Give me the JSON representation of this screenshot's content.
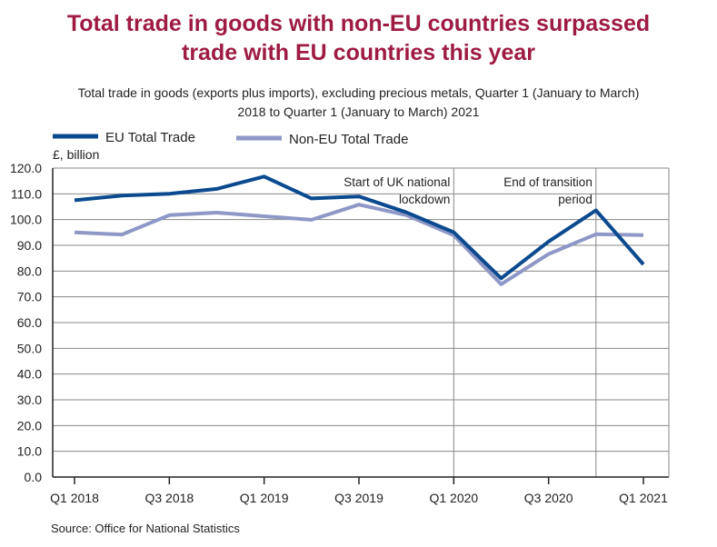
{
  "title_line1": "Total trade in goods with non-EU countries surpassed",
  "title_line2": "trade with EU countries this year",
  "subtitle_line1": "Total trade in goods (exports plus imports), excluding precious metals, Quarter 1 (January to March)",
  "subtitle_line2": "2018 to Quarter 1 (January to March) 2021",
  "source": "Source: Office for National Statistics",
  "chart_data": {
    "type": "line",
    "ylabel": "£, billion",
    "ylim": [
      0,
      120
    ],
    "yticks": [
      "0.0",
      "10.0",
      "20.0",
      "30.0",
      "40.0",
      "50.0",
      "60.0",
      "70.0",
      "80.0",
      "90.0",
      "100.0",
      "110.0",
      "120.0"
    ],
    "ytick_values": [
      0,
      10,
      20,
      30,
      40,
      50,
      60,
      70,
      80,
      90,
      100,
      110,
      120
    ],
    "x": [
      "Q1 2018",
      "Q2 2018",
      "Q3 2018",
      "Q4 2018",
      "Q1 2019",
      "Q2 2019",
      "Q3 2019",
      "Q4 2019",
      "Q1 2020",
      "Q2 2020",
      "Q3 2020",
      "Q4 2020",
      "Q1 2021"
    ],
    "xtick_labels": [
      "Q1 2018",
      "",
      "Q3 2018",
      "",
      "Q1 2019",
      "",
      "Q3 2019",
      "",
      "Q1 2020",
      "",
      "Q3 2020",
      "",
      "Q1 2021"
    ],
    "grid": true,
    "legend_position": "top-left",
    "series": [
      {
        "name": "EU Total Trade",
        "color": "#0b4a8f",
        "values": [
          107.5,
          109.3,
          110.0,
          111.9,
          116.7,
          108.2,
          109.0,
          102.8,
          95.1,
          77.2,
          91.5,
          103.6,
          82.6
        ]
      },
      {
        "name": "Non-EU Total Trade",
        "color": "#8e97c6",
        "values": [
          95.0,
          94.2,
          101.7,
          102.7,
          101.3,
          99.9,
          105.8,
          101.7,
          93.9,
          74.9,
          86.6,
          94.3,
          94.0
        ]
      }
    ],
    "annotations": [
      {
        "x_index": 8,
        "line1": "Start of UK national",
        "line2": "lockdown"
      },
      {
        "x_index": 11,
        "line1": "End of transition",
        "line2": "period"
      }
    ]
  }
}
